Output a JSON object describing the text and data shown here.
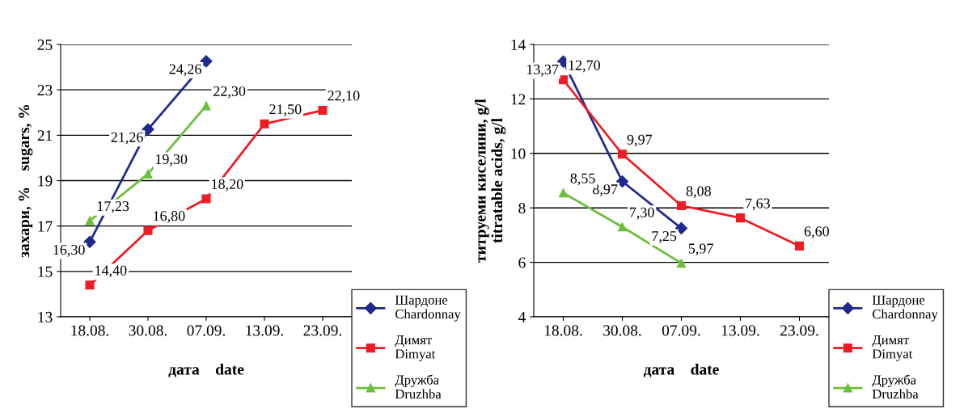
{
  "chart_data": [
    {
      "type": "line",
      "xlabel": "дата    date",
      "ylabel": "захари, %    sugars, %",
      "categories": [
        "18.08.",
        "30.08.",
        "07.09.",
        "13.09.",
        "23.09."
      ],
      "ylim": [
        13,
        25
      ],
      "yticks": [
        13,
        15,
        17,
        19,
        21,
        23,
        25
      ],
      "grid": "y",
      "legend": "bottom right",
      "series": [
        {
          "name": "Шардоне\nChardonnay",
          "color": "#1f2a8c",
          "marker": "diamond",
          "values": [
            16.3,
            21.26,
            24.26,
            null,
            null
          ],
          "value_labels": [
            "16,30",
            "21,26",
            "24,26",
            null,
            null
          ]
        },
        {
          "name": "Димят\nDimyat",
          "color": "#ee1c24",
          "marker": "square",
          "values": [
            14.4,
            16.8,
            18.2,
            21.5,
            22.1
          ],
          "value_labels": [
            "14,40",
            "16,80",
            "18,20",
            "21,50",
            "22,10"
          ]
        },
        {
          "name": "Дружба\nDruzhba",
          "color": "#6cbf3a",
          "marker": "triangle",
          "values": [
            17.23,
            19.3,
            22.3,
            null,
            null
          ],
          "value_labels": [
            "17,23",
            "19,30",
            "22,30",
            null,
            null
          ]
        }
      ]
    },
    {
      "type": "line",
      "xlabel": "дата    date",
      "ylabel": "титруеми киселини, g/l\ntitratable acids, g/l",
      "categories": [
        "18.08.",
        "30.08.",
        "07.09.",
        "13.09.",
        "23.09."
      ],
      "ylim": [
        4,
        14
      ],
      "yticks": [
        4,
        6,
        8,
        10,
        12,
        14
      ],
      "grid": "y",
      "legend": "bottom right",
      "series": [
        {
          "name": "Шардоне\nChardonnay",
          "color": "#1f2a8c",
          "marker": "diamond",
          "values": [
            13.37,
            8.97,
            7.25,
            null,
            null
          ],
          "value_labels": [
            "13,37",
            "8,97",
            "7,25",
            null,
            null
          ]
        },
        {
          "name": "Димят\nDimyat",
          "color": "#ee1c24",
          "marker": "square",
          "values": [
            12.7,
            9.97,
            8.08,
            7.63,
            6.6
          ],
          "value_labels": [
            "12,70",
            "9,97",
            "8,08",
            "7,63",
            "6,60"
          ]
        },
        {
          "name": "Дружба\nDruzhba",
          "color": "#6cbf3a",
          "marker": "triangle",
          "values": [
            8.55,
            7.3,
            5.97,
            null,
            null
          ],
          "value_labels": [
            "8,55",
            "7,30",
            "5,97",
            null,
            null
          ]
        }
      ]
    }
  ]
}
